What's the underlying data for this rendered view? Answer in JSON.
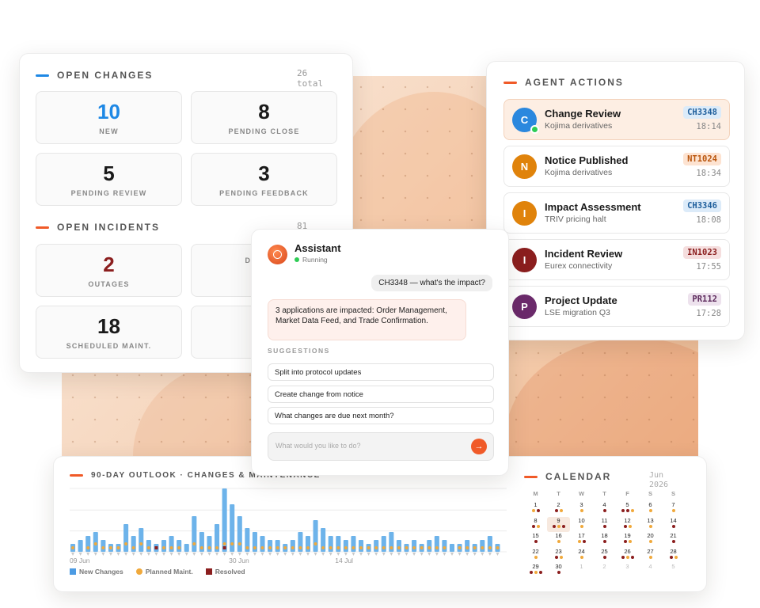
{
  "colors": {
    "accent": "#f05a28",
    "blue": "#1e88e5",
    "new_changes": "#6db3ea",
    "planned": "#f0a93c",
    "resolved": "#8b1e1e"
  },
  "open_changes": {
    "title": "OPEN CHANGES",
    "total": "26",
    "total_label": "total",
    "tiles": [
      {
        "value": "10",
        "label": "NEW",
        "color": "#1e88e5"
      },
      {
        "value": "8",
        "label": "PENDING CLOSE",
        "color": "#1a1a1a"
      },
      {
        "value": "5",
        "label": "PENDING REVIEW",
        "color": "#1a1a1a"
      },
      {
        "value": "3",
        "label": "PENDING FEEDBACK",
        "color": "#1a1a1a"
      }
    ]
  },
  "open_incidents": {
    "title": "OPEN INCIDENTS",
    "total": "81",
    "tiles": [
      {
        "value": "2",
        "label": "OUTAGES",
        "color": "#8b1e1e"
      },
      {
        "value": "",
        "label": "DE... S...",
        "color": "#1a1a1a"
      },
      {
        "value": "18",
        "label": "SCHEDULED MAINT.",
        "color": "#1a1a1a"
      },
      {
        "value": "",
        "label": "C...",
        "color": "#1a1a1a"
      }
    ]
  },
  "agent_actions": {
    "title": "AGENT ACTIONS",
    "items": [
      {
        "initial": "C",
        "avatar_color": "#2b88de",
        "title": "Change Review",
        "subtitle": "Kojima derivatives",
        "badge": "CH3348",
        "badge_bg": "#dcebf9",
        "badge_fg": "#1f5f9c",
        "time": "18:14",
        "active": true,
        "online": true
      },
      {
        "initial": "N",
        "avatar_color": "#e0830b",
        "title": "Notice Published",
        "subtitle": "Kojima derivatives",
        "badge": "NT1024",
        "badge_bg": "#fde3d1",
        "badge_fg": "#b9560e",
        "time": "18:34",
        "active": false,
        "online": false
      },
      {
        "initial": "I",
        "avatar_color": "#e0830b",
        "title": "Impact Assessment",
        "subtitle": "TRIV pricing halt",
        "badge": "CH3346",
        "badge_bg": "#dcebf9",
        "badge_fg": "#1f5f9c",
        "time": "18:08",
        "active": false,
        "online": false
      },
      {
        "initial": "I",
        "avatar_color": "#8b1e1e",
        "title": "Incident Review",
        "subtitle": "Eurex connectivity",
        "badge": "IN1023",
        "badge_bg": "#f5dede",
        "badge_fg": "#8b1e1e",
        "time": "17:55",
        "active": false,
        "online": false
      },
      {
        "initial": "P",
        "avatar_color": "#6b2a6b",
        "title": "Project Update",
        "subtitle": "LSE migration Q3",
        "badge": "PR112",
        "badge_bg": "#ede2ed",
        "badge_fg": "#5c2a5c",
        "time": "17:28",
        "active": false,
        "online": false
      }
    ]
  },
  "assistant": {
    "title": "Assistant",
    "status": "Running",
    "user_message": "CH3348 — what's the impact?",
    "ai_message": "3 applications are impacted: Order Management, Market Data Feed, and Trade Confirmation.",
    "suggestions_title": "SUGGESTIONS",
    "suggestions": [
      "Split into protocol updates",
      "Create change from notice",
      "What changes are due next month?"
    ],
    "input_placeholder": "What would you like to do?",
    "send_icon": "arrow-right-icon"
  },
  "outlook": {
    "title": "90-DAY OUTLOOK · CHANGES & MAINTENANCE",
    "legend": [
      "New Changes",
      "Planned Maint.",
      "Resolved"
    ]
  },
  "chart_data": {
    "type": "bar",
    "x_tick_labels": [
      "09 Jun",
      "30 Jun",
      "14 Jul"
    ],
    "series": [
      {
        "name": "New Changes",
        "values": [
          2,
          3,
          4,
          5,
          3,
          2,
          2,
          7,
          4,
          6,
          3,
          2,
          3,
          4,
          3,
          2,
          9,
          5,
          4,
          7,
          16,
          12,
          9,
          6,
          5,
          4,
          3,
          3,
          2,
          3,
          5,
          4,
          8,
          6,
          4,
          4,
          3,
          4,
          3,
          2,
          3,
          4,
          5,
          3,
          2,
          3,
          2,
          3,
          4,
          3,
          2,
          2,
          3,
          2,
          3,
          4,
          2
        ]
      },
      {
        "name": "Planned Maint.",
        "values": [
          1,
          0,
          1,
          2,
          1,
          1,
          1,
          2,
          1,
          2,
          1,
          1,
          1,
          1,
          1,
          0,
          2,
          1,
          1,
          1,
          2,
          2,
          2,
          1,
          1,
          1,
          1,
          1,
          1,
          1,
          1,
          1,
          2,
          1,
          1,
          1,
          1,
          1,
          1,
          1,
          1,
          1,
          1,
          1,
          1,
          1,
          1,
          1,
          1,
          1,
          0,
          1,
          1,
          1,
          1,
          1,
          1
        ]
      },
      {
        "name": "Resolved",
        "values": [
          0,
          0,
          0,
          0,
          0,
          0,
          0,
          0,
          0,
          0,
          0,
          1,
          0,
          0,
          0,
          0,
          0,
          0,
          0,
          0,
          1,
          0,
          0,
          0,
          0,
          0,
          0,
          0,
          0,
          0,
          0,
          0,
          0,
          0,
          0,
          0,
          0,
          0,
          0,
          0,
          0,
          0,
          0,
          0,
          0,
          0,
          0,
          0,
          0,
          0,
          0,
          0,
          0,
          0,
          0,
          0,
          0
        ]
      }
    ]
  },
  "calendar": {
    "title": "CALENDAR",
    "month": "Jun",
    "year": "2026",
    "weekdays": [
      "M",
      "T",
      "W",
      "T",
      "F",
      "S",
      "S"
    ],
    "rows": [
      [
        {
          "d": "1",
          "dots": [
            "o",
            "r"
          ]
        },
        {
          "d": "2",
          "dots": [
            "r",
            "o"
          ]
        },
        {
          "d": "3",
          "dots": [
            "o"
          ]
        },
        {
          "d": "4",
          "dots": [
            "r"
          ]
        },
        {
          "d": "5",
          "dots": [
            "r",
            "r",
            "o"
          ]
        },
        {
          "d": "6",
          "dots": [
            "o"
          ]
        },
        {
          "d": "7",
          "dots": [
            "o"
          ]
        }
      ],
      [
        {
          "d": "8",
          "dots": [
            "r",
            "o"
          ]
        },
        {
          "d": "9",
          "dots": [
            "r",
            "o",
            "r"
          ],
          "today": true
        },
        {
          "d": "10",
          "dots": [
            "o"
          ]
        },
        {
          "d": "11",
          "dots": [
            "r"
          ]
        },
        {
          "d": "12",
          "dots": [
            "r",
            "o"
          ]
        },
        {
          "d": "13",
          "dots": [
            "o"
          ]
        },
        {
          "d": "14",
          "dots": [
            "r"
          ]
        }
      ],
      [
        {
          "d": "15",
          "dots": [
            "r"
          ]
        },
        {
          "d": "16",
          "dots": [
            "o"
          ]
        },
        {
          "d": "17",
          "dots": [
            "o",
            "r"
          ]
        },
        {
          "d": "18",
          "dots": [
            "r"
          ]
        },
        {
          "d": "19",
          "dots": [
            "r",
            "o"
          ]
        },
        {
          "d": "20",
          "dots": [
            "o"
          ]
        },
        {
          "d": "21",
          "dots": [
            "r"
          ]
        }
      ],
      [
        {
          "d": "22",
          "dots": [
            "o"
          ]
        },
        {
          "d": "23",
          "dots": [
            "r",
            "o"
          ]
        },
        {
          "d": "24",
          "dots": [
            "o"
          ]
        },
        {
          "d": "25",
          "dots": [
            "r"
          ]
        },
        {
          "d": "26",
          "dots": [
            "r",
            "o",
            "r"
          ]
        },
        {
          "d": "27",
          "dots": [
            "o"
          ]
        },
        {
          "d": "28",
          "dots": [
            "r",
            "o"
          ]
        }
      ],
      [
        {
          "d": "29",
          "dots": [
            "r",
            "o",
            "r"
          ]
        },
        {
          "d": "30",
          "dots": [
            "r"
          ]
        },
        {
          "d": "1",
          "other": true
        },
        {
          "d": "2",
          "other": true
        },
        {
          "d": "3",
          "other": true
        },
        {
          "d": "4",
          "other": true
        },
        {
          "d": "5",
          "other": true
        }
      ]
    ]
  }
}
